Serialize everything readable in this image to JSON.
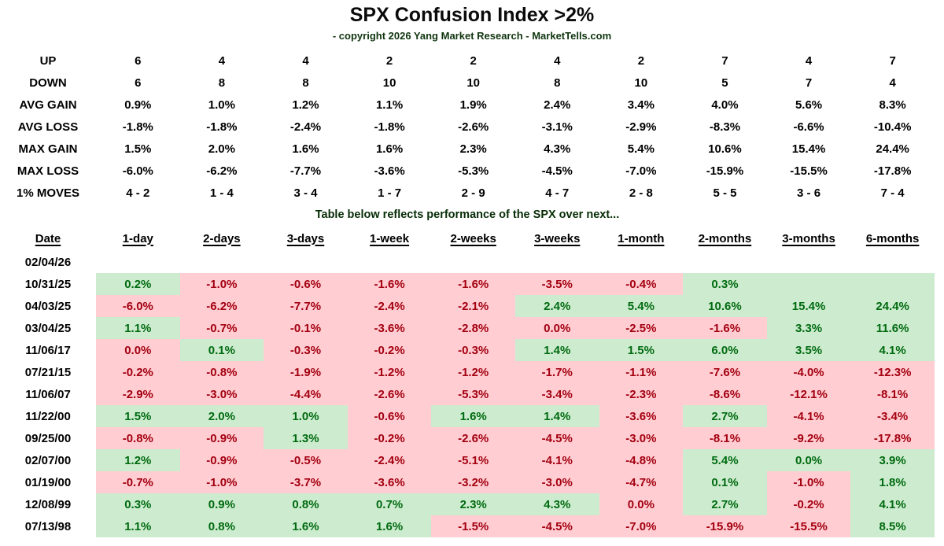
{
  "title": "SPX Confusion Index >2%",
  "subtitle": "- copyright 2026 Yang Market Research - MarketTells.com",
  "note": "Table below reflects performance of the SPX over next...",
  "colors": {
    "pos_bg": "#cdeccf",
    "neg_bg": "#ffcdd2",
    "pos_text": "#006a10",
    "neg_text": "#a30010",
    "header_text": "#000000"
  },
  "stats": {
    "rows": [
      {
        "label": "UP",
        "values": [
          "6",
          "4",
          "4",
          "2",
          "2",
          "4",
          "2",
          "7",
          "4",
          "7"
        ]
      },
      {
        "label": "DOWN",
        "values": [
          "6",
          "8",
          "8",
          "10",
          "10",
          "8",
          "10",
          "5",
          "7",
          "4"
        ]
      },
      {
        "label": "AVG GAIN",
        "values": [
          "0.9%",
          "1.0%",
          "1.2%",
          "1.1%",
          "1.9%",
          "2.4%",
          "3.4%",
          "4.0%",
          "5.6%",
          "8.3%"
        ]
      },
      {
        "label": "AVG LOSS",
        "values": [
          "-1.8%",
          "-1.8%",
          "-2.4%",
          "-1.8%",
          "-2.6%",
          "-3.1%",
          "-2.9%",
          "-8.3%",
          "-6.6%",
          "-10.4%"
        ]
      },
      {
        "label": "MAX GAIN",
        "values": [
          "1.5%",
          "2.0%",
          "1.6%",
          "1.6%",
          "2.3%",
          "4.3%",
          "5.4%",
          "10.6%",
          "15.4%",
          "24.4%"
        ]
      },
      {
        "label": "MAX LOSS",
        "values": [
          "-6.0%",
          "-6.2%",
          "-7.7%",
          "-3.6%",
          "-5.3%",
          "-4.5%",
          "-7.0%",
          "-15.9%",
          "-15.5%",
          "-17.8%"
        ]
      },
      {
        "label": "1% MOVES",
        "values": [
          "4 - 2",
          "1 - 4",
          "3 - 4",
          "1 - 7",
          "2 - 9",
          "4 - 7",
          "2 - 8",
          "5 - 5",
          "3 - 6",
          "7 - 4"
        ]
      }
    ]
  },
  "perf": {
    "headers": [
      "Date",
      "1-day",
      "2-days",
      "3-days",
      "1-week",
      "2-weeks",
      "3-weeks",
      "1-month",
      "2-months",
      "3-months",
      "6-months"
    ],
    "rows": [
      {
        "date": "02/04/26",
        "cells": [
          null,
          null,
          null,
          null,
          null,
          null,
          null,
          null,
          null,
          null
        ]
      },
      {
        "date": "10/31/25",
        "cells": [
          {
            "v": "0.2%",
            "c": "g"
          },
          {
            "v": "-1.0%",
            "c": "r"
          },
          {
            "v": "-0.6%",
            "c": "r"
          },
          {
            "v": "-1.6%",
            "c": "r"
          },
          {
            "v": "-1.6%",
            "c": "r"
          },
          {
            "v": "-3.5%",
            "c": "r"
          },
          {
            "v": "-0.4%",
            "c": "r"
          },
          {
            "v": "0.3%",
            "c": "g"
          },
          {
            "v": "",
            "c": "g"
          },
          {
            "v": "",
            "c": "g"
          }
        ]
      },
      {
        "date": "04/03/25",
        "cells": [
          {
            "v": "-6.0%",
            "c": "r"
          },
          {
            "v": "-6.2%",
            "c": "r"
          },
          {
            "v": "-7.7%",
            "c": "r"
          },
          {
            "v": "-2.4%",
            "c": "r"
          },
          {
            "v": "-2.1%",
            "c": "r"
          },
          {
            "v": "2.4%",
            "c": "g"
          },
          {
            "v": "5.4%",
            "c": "g"
          },
          {
            "v": "10.6%",
            "c": "g"
          },
          {
            "v": "15.4%",
            "c": "g"
          },
          {
            "v": "24.4%",
            "c": "g"
          }
        ]
      },
      {
        "date": "03/04/25",
        "cells": [
          {
            "v": "1.1%",
            "c": "g"
          },
          {
            "v": "-0.7%",
            "c": "r"
          },
          {
            "v": "-0.1%",
            "c": "r"
          },
          {
            "v": "-3.6%",
            "c": "r"
          },
          {
            "v": "-2.8%",
            "c": "r"
          },
          {
            "v": "0.0%",
            "c": "r"
          },
          {
            "v": "-2.5%",
            "c": "r"
          },
          {
            "v": "-1.6%",
            "c": "r"
          },
          {
            "v": "3.3%",
            "c": "g"
          },
          {
            "v": "11.6%",
            "c": "g"
          }
        ]
      },
      {
        "date": "11/06/17",
        "cells": [
          {
            "v": "0.0%",
            "c": "r"
          },
          {
            "v": "0.1%",
            "c": "g"
          },
          {
            "v": "-0.3%",
            "c": "r"
          },
          {
            "v": "-0.2%",
            "c": "r"
          },
          {
            "v": "-0.3%",
            "c": "r"
          },
          {
            "v": "1.4%",
            "c": "g"
          },
          {
            "v": "1.5%",
            "c": "g"
          },
          {
            "v": "6.0%",
            "c": "g"
          },
          {
            "v": "3.5%",
            "c": "g"
          },
          {
            "v": "4.1%",
            "c": "g"
          }
        ]
      },
      {
        "date": "07/21/15",
        "cells": [
          {
            "v": "-0.2%",
            "c": "r"
          },
          {
            "v": "-0.8%",
            "c": "r"
          },
          {
            "v": "-1.9%",
            "c": "r"
          },
          {
            "v": "-1.2%",
            "c": "r"
          },
          {
            "v": "-1.2%",
            "c": "r"
          },
          {
            "v": "-1.7%",
            "c": "r"
          },
          {
            "v": "-1.1%",
            "c": "r"
          },
          {
            "v": "-7.6%",
            "c": "r"
          },
          {
            "v": "-4.0%",
            "c": "r"
          },
          {
            "v": "-12.3%",
            "c": "r"
          }
        ]
      },
      {
        "date": "11/06/07",
        "cells": [
          {
            "v": "-2.9%",
            "c": "r"
          },
          {
            "v": "-3.0%",
            "c": "r"
          },
          {
            "v": "-4.4%",
            "c": "r"
          },
          {
            "v": "-2.6%",
            "c": "r"
          },
          {
            "v": "-5.3%",
            "c": "r"
          },
          {
            "v": "-3.4%",
            "c": "r"
          },
          {
            "v": "-2.3%",
            "c": "r"
          },
          {
            "v": "-8.6%",
            "c": "r"
          },
          {
            "v": "-12.1%",
            "c": "r"
          },
          {
            "v": "-8.1%",
            "c": "r"
          }
        ]
      },
      {
        "date": "11/22/00",
        "cells": [
          {
            "v": "1.5%",
            "c": "g"
          },
          {
            "v": "2.0%",
            "c": "g"
          },
          {
            "v": "1.0%",
            "c": "g"
          },
          {
            "v": "-0.6%",
            "c": "r"
          },
          {
            "v": "1.6%",
            "c": "g"
          },
          {
            "v": "1.4%",
            "c": "g"
          },
          {
            "v": "-3.6%",
            "c": "r"
          },
          {
            "v": "2.7%",
            "c": "g"
          },
          {
            "v": "-4.1%",
            "c": "r"
          },
          {
            "v": "-3.4%",
            "c": "r"
          }
        ]
      },
      {
        "date": "09/25/00",
        "cells": [
          {
            "v": "-0.8%",
            "c": "r"
          },
          {
            "v": "-0.9%",
            "c": "r"
          },
          {
            "v": "1.3%",
            "c": "g"
          },
          {
            "v": "-0.2%",
            "c": "r"
          },
          {
            "v": "-2.6%",
            "c": "r"
          },
          {
            "v": "-4.5%",
            "c": "r"
          },
          {
            "v": "-3.0%",
            "c": "r"
          },
          {
            "v": "-8.1%",
            "c": "r"
          },
          {
            "v": "-9.2%",
            "c": "r"
          },
          {
            "v": "-17.8%",
            "c": "r"
          }
        ]
      },
      {
        "date": "02/07/00",
        "cells": [
          {
            "v": "1.2%",
            "c": "g"
          },
          {
            "v": "-0.9%",
            "c": "r"
          },
          {
            "v": "-0.5%",
            "c": "r"
          },
          {
            "v": "-2.4%",
            "c": "r"
          },
          {
            "v": "-5.1%",
            "c": "r"
          },
          {
            "v": "-4.1%",
            "c": "r"
          },
          {
            "v": "-4.8%",
            "c": "r"
          },
          {
            "v": "5.4%",
            "c": "g"
          },
          {
            "v": "0.0%",
            "c": "g"
          },
          {
            "v": "3.9%",
            "c": "g"
          }
        ]
      },
      {
        "date": "01/19/00",
        "cells": [
          {
            "v": "-0.7%",
            "c": "r"
          },
          {
            "v": "-1.0%",
            "c": "r"
          },
          {
            "v": "-3.7%",
            "c": "r"
          },
          {
            "v": "-3.6%",
            "c": "r"
          },
          {
            "v": "-3.2%",
            "c": "r"
          },
          {
            "v": "-3.0%",
            "c": "r"
          },
          {
            "v": "-4.7%",
            "c": "r"
          },
          {
            "v": "0.1%",
            "c": "g"
          },
          {
            "v": "-1.0%",
            "c": "r"
          },
          {
            "v": "1.8%",
            "c": "g"
          }
        ]
      },
      {
        "date": "12/08/99",
        "cells": [
          {
            "v": "0.3%",
            "c": "g"
          },
          {
            "v": "0.9%",
            "c": "g"
          },
          {
            "v": "0.8%",
            "c": "g"
          },
          {
            "v": "0.7%",
            "c": "g"
          },
          {
            "v": "2.3%",
            "c": "g"
          },
          {
            "v": "4.3%",
            "c": "g"
          },
          {
            "v": "0.0%",
            "c": "r"
          },
          {
            "v": "2.7%",
            "c": "g"
          },
          {
            "v": "-0.2%",
            "c": "r"
          },
          {
            "v": "4.1%",
            "c": "g"
          }
        ]
      },
      {
        "date": "07/13/98",
        "cells": [
          {
            "v": "1.1%",
            "c": "g"
          },
          {
            "v": "0.8%",
            "c": "g"
          },
          {
            "v": "1.6%",
            "c": "g"
          },
          {
            "v": "1.6%",
            "c": "g"
          },
          {
            "v": "-1.5%",
            "c": "r"
          },
          {
            "v": "-4.5%",
            "c": "r"
          },
          {
            "v": "-7.0%",
            "c": "r"
          },
          {
            "v": "-15.9%",
            "c": "r"
          },
          {
            "v": "-15.5%",
            "c": "r"
          },
          {
            "v": "8.5%",
            "c": "g"
          }
        ]
      }
    ]
  },
  "chart_data": {
    "type": "table",
    "title": "SPX Confusion Index >2%",
    "subtitle": "- copyright 2026 Yang Market Research - MarketTells.com",
    "summary_rows": {
      "UP": [
        6,
        4,
        4,
        2,
        2,
        4,
        2,
        7,
        4,
        7
      ],
      "DOWN": [
        6,
        8,
        8,
        10,
        10,
        8,
        10,
        5,
        7,
        4
      ],
      "AVG GAIN": [
        0.9,
        1.0,
        1.2,
        1.1,
        1.9,
        2.4,
        3.4,
        4.0,
        5.6,
        8.3
      ],
      "AVG LOSS": [
        -1.8,
        -1.8,
        -2.4,
        -1.8,
        -2.6,
        -3.1,
        -2.9,
        -8.3,
        -6.6,
        -10.4
      ],
      "MAX GAIN": [
        1.5,
        2.0,
        1.6,
        1.6,
        2.3,
        4.3,
        5.4,
        10.6,
        15.4,
        24.4
      ],
      "MAX LOSS": [
        -6.0,
        -6.2,
        -7.7,
        -3.6,
        -5.3,
        -4.5,
        -7.0,
        -15.9,
        -15.5,
        -17.8
      ],
      "1% MOVES": [
        "4 - 2",
        "1 - 4",
        "3 - 4",
        "1 - 7",
        "2 - 9",
        "4 - 7",
        "2 - 8",
        "5 - 5",
        "3 - 6",
        "7 - 4"
      ]
    },
    "columns": [
      "1-day",
      "2-days",
      "3-days",
      "1-week",
      "2-weeks",
      "3-weeks",
      "1-month",
      "2-months",
      "3-months",
      "6-months"
    ],
    "rows_by_date": {
      "02/04/26": [
        null,
        null,
        null,
        null,
        null,
        null,
        null,
        null,
        null,
        null
      ],
      "10/31/25": [
        0.2,
        -1.0,
        -0.6,
        -1.6,
        -1.6,
        -3.5,
        -0.4,
        0.3,
        null,
        null
      ],
      "04/03/25": [
        -6.0,
        -6.2,
        -7.7,
        -2.4,
        -2.1,
        2.4,
        5.4,
        10.6,
        15.4,
        24.4
      ],
      "03/04/25": [
        1.1,
        -0.7,
        -0.1,
        -3.6,
        -2.8,
        0.0,
        -2.5,
        -1.6,
        3.3,
        11.6
      ],
      "11/06/17": [
        0.0,
        0.1,
        -0.3,
        -0.2,
        -0.3,
        1.4,
        1.5,
        6.0,
        3.5,
        4.1
      ],
      "07/21/15": [
        -0.2,
        -0.8,
        -1.9,
        -1.2,
        -1.2,
        -1.7,
        -1.1,
        -7.6,
        -4.0,
        -12.3
      ],
      "11/06/07": [
        -2.9,
        -3.0,
        -4.4,
        -2.6,
        -5.3,
        -3.4,
        -2.3,
        -8.6,
        -12.1,
        -8.1
      ],
      "11/22/00": [
        1.5,
        2.0,
        1.0,
        -0.6,
        1.6,
        1.4,
        -3.6,
        2.7,
        -4.1,
        -3.4
      ],
      "09/25/00": [
        -0.8,
        -0.9,
        1.3,
        -0.2,
        -2.6,
        -4.5,
        -3.0,
        -8.1,
        -9.2,
        -17.8
      ],
      "02/07/00": [
        1.2,
        -0.9,
        -0.5,
        -2.4,
        -5.1,
        -4.1,
        -4.8,
        5.4,
        0.0,
        3.9
      ],
      "01/19/00": [
        -0.7,
        -1.0,
        -3.7,
        -3.6,
        -3.2,
        -3.0,
        -4.7,
        0.1,
        -1.0,
        1.8
      ],
      "12/08/99": [
        0.3,
        0.9,
        0.8,
        0.7,
        2.3,
        4.3,
        0.0,
        2.7,
        -0.2,
        4.1
      ],
      "07/13/98": [
        1.1,
        0.8,
        1.6,
        1.6,
        -1.5,
        -4.5,
        -7.0,
        -15.9,
        -15.5,
        8.5
      ]
    },
    "cell_color_rule": "green background = highlighted positive outcome, pink background = negative outcome; 0.0% may be colored either way per source"
  }
}
